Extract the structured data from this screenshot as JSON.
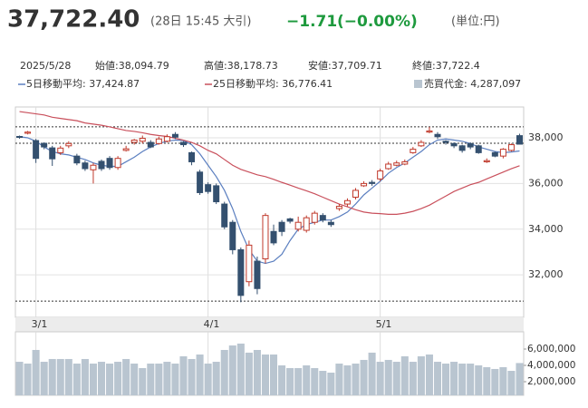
{
  "header": {
    "price": "37,722.40",
    "time": "(28日 15:45 大引)",
    "change": "−1.71",
    "change_pct": "(−0.00%)",
    "unit": "(単位:円)"
  },
  "info": {
    "date": "2025/5/28",
    "items": [
      {
        "label": "始値:",
        "value": "38,094.79"
      },
      {
        "label": "高値:",
        "value": "38,178.73"
      },
      {
        "label": "安値:",
        "value": "37,709.71"
      },
      {
        "label": "終値:",
        "value": "37,722.4"
      }
    ]
  },
  "chart_data": [
    {
      "type": "candlestick",
      "categories": [
        null,
        null,
        "3/1",
        null,
        null,
        null,
        null,
        null,
        null,
        null,
        null,
        null,
        null,
        null,
        null,
        null,
        null,
        null,
        null,
        null,
        null,
        null,
        null,
        "4/1",
        null,
        null,
        null,
        null,
        null,
        null,
        null,
        null,
        null,
        null,
        null,
        null,
        null,
        null,
        null,
        null,
        null,
        null,
        null,
        null,
        "5/1",
        null,
        null,
        null,
        null,
        null,
        null,
        null,
        null,
        null,
        null,
        null,
        null,
        null,
        null,
        null,
        null,
        null
      ],
      "open": [
        38060,
        38200,
        37880,
        37760,
        37560,
        37350,
        37650,
        37200,
        36900,
        36600,
        36970,
        37100,
        36700,
        37450,
        37800,
        37850,
        37800,
        37750,
        37850,
        38150,
        37800,
        37350,
        36500,
        35950,
        35900,
        35100,
        34300,
        33100,
        31700,
        32600,
        32700,
        33900,
        34300,
        34450,
        34000,
        33950,
        34300,
        34600,
        34300,
        34900,
        35100,
        35400,
        35900,
        36050,
        36200,
        36650,
        36800,
        36850,
        37350,
        37650,
        38250,
        38150,
        37850,
        37750,
        37650,
        37750,
        37650,
        36950,
        37350,
        37200,
        37450,
        38094.79
      ],
      "high": [
        38100,
        38300,
        37950,
        37800,
        37650,
        37650,
        37850,
        37300,
        37000,
        36900,
        37050,
        37200,
        37200,
        37650,
        37950,
        38100,
        37900,
        38050,
        38150,
        38250,
        37850,
        37400,
        36600,
        36050,
        36000,
        35200,
        34400,
        33200,
        33500,
        32800,
        34700,
        34200,
        34400,
        34500,
        34550,
        34600,
        34800,
        34700,
        34400,
        35100,
        35350,
        35800,
        36100,
        36150,
        36650,
        36950,
        37000,
        37050,
        37600,
        37900,
        38480,
        38250,
        37900,
        37800,
        37700,
        37800,
        37700,
        37100,
        37400,
        37550,
        37750,
        38178.73
      ],
      "low": [
        37960,
        38150,
        36900,
        37500,
        36770,
        37250,
        37550,
        36800,
        36550,
        36000,
        36550,
        36600,
        36600,
        37400,
        37700,
        37750,
        37550,
        37700,
        37800,
        37950,
        37600,
        36800,
        35500,
        35550,
        35100,
        34000,
        32900,
        30800,
        31500,
        31150,
        32500,
        33300,
        33700,
        34250,
        33900,
        33850,
        34200,
        34300,
        34100,
        34800,
        35000,
        35300,
        35850,
        35900,
        36100,
        36600,
        36750,
        36800,
        37300,
        37600,
        38200,
        37950,
        37700,
        37550,
        37350,
        37500,
        37300,
        36900,
        37150,
        37100,
        37400,
        37709.71
      ],
      "close": [
        38020,
        38250,
        37100,
        37600,
        37080,
        37550,
        37750,
        36900,
        36650,
        36800,
        36650,
        36700,
        37100,
        37520,
        37900,
        37980,
        37600,
        37950,
        38050,
        38030,
        37700,
        36950,
        35600,
        35650,
        35200,
        34100,
        33100,
        31100,
        33300,
        31400,
        34600,
        33400,
        33900,
        34350,
        34300,
        34500,
        34700,
        34400,
        34200,
        35000,
        35250,
        35700,
        36000,
        36000,
        36550,
        36850,
        36900,
        36950,
        37500,
        37800,
        38300,
        38050,
        37800,
        37650,
        37450,
        37600,
        37350,
        37000,
        37200,
        37500,
        37700,
        37722.4
      ],
      "series": [
        {
          "name": "5日移動平均: 37,424.87",
          "color": "#5b7fc0",
          "values": [
            38050,
            38000,
            37850,
            37600,
            37400,
            37300,
            37250,
            37150,
            37050,
            36900,
            36800,
            36750,
            36750,
            36950,
            37150,
            37400,
            37600,
            37750,
            37850,
            37900,
            37880,
            37700,
            37300,
            36800,
            36300,
            35700,
            34900,
            33900,
            33100,
            32600,
            32500,
            32600,
            32900,
            33500,
            34000,
            34200,
            34300,
            34400,
            34400,
            34550,
            34750,
            35100,
            35500,
            35800,
            36100,
            36450,
            36700,
            36900,
            37150,
            37400,
            37700,
            37900,
            37950,
            37900,
            37850,
            37750,
            37600,
            37500,
            37400,
            37350,
            37380,
            37424.87
          ]
        },
        {
          "name": "25日移動平均: 36,776.41",
          "color": "#c9505c",
          "values": [
            39150,
            39100,
            39050,
            39000,
            38900,
            38850,
            38800,
            38750,
            38650,
            38600,
            38550,
            38480,
            38400,
            38320,
            38280,
            38220,
            38150,
            38100,
            38060,
            37980,
            37900,
            37800,
            37650,
            37450,
            37300,
            37050,
            36800,
            36620,
            36500,
            36380,
            36300,
            36180,
            36050,
            35930,
            35800,
            35680,
            35550,
            35400,
            35250,
            35100,
            34980,
            34850,
            34750,
            34700,
            34680,
            34650,
            34650,
            34700,
            34780,
            34900,
            35050,
            35250,
            35450,
            35650,
            35800,
            35950,
            36050,
            36200,
            36350,
            36500,
            36650,
            36776.41
          ]
        }
      ],
      "up_color": "#c0392b",
      "down_color": "#34506f",
      "ylim": [
        30140,
        39350
      ],
      "yticks": [
        {
          "value": 32000,
          "label": "32,000"
        },
        {
          "value": 34000,
          "label": "34,000"
        },
        {
          "value": 36000,
          "label": "36,000"
        },
        {
          "value": 38000,
          "label": "38,000"
        }
      ],
      "reference_lines": [
        38480,
        37760,
        30850
      ],
      "grid": true
    },
    {
      "type": "bar",
      "name": "売買代金: 4,287,097",
      "color": "#b9c5d0",
      "values": [
        4440000,
        4220000,
        5890000,
        4440000,
        4780000,
        4780000,
        4780000,
        4220000,
        4780000,
        4220000,
        4440000,
        4220000,
        4440000,
        4780000,
        4220000,
        3670000,
        4220000,
        4220000,
        4440000,
        4220000,
        5110000,
        4780000,
        5330000,
        4220000,
        4440000,
        5890000,
        6440000,
        6670000,
        5560000,
        5890000,
        5330000,
        5330000,
        4000000,
        3670000,
        3670000,
        4000000,
        3670000,
        3330000,
        3110000,
        4220000,
        4000000,
        4220000,
        4670000,
        5560000,
        4440000,
        4670000,
        4440000,
        5110000,
        4440000,
        5110000,
        5330000,
        4440000,
        4220000,
        4440000,
        4220000,
        4220000,
        4000000,
        3780000,
        3560000,
        3780000,
        3330000,
        4287097
      ],
      "ylim": [
        333000,
        8110000
      ],
      "yticks": [
        {
          "value": 2000000,
          "label": "2,000,000"
        },
        {
          "value": 4000000,
          "label": "4,000,000"
        },
        {
          "value": 6000000,
          "label": "6,000,000"
        }
      ]
    }
  ]
}
